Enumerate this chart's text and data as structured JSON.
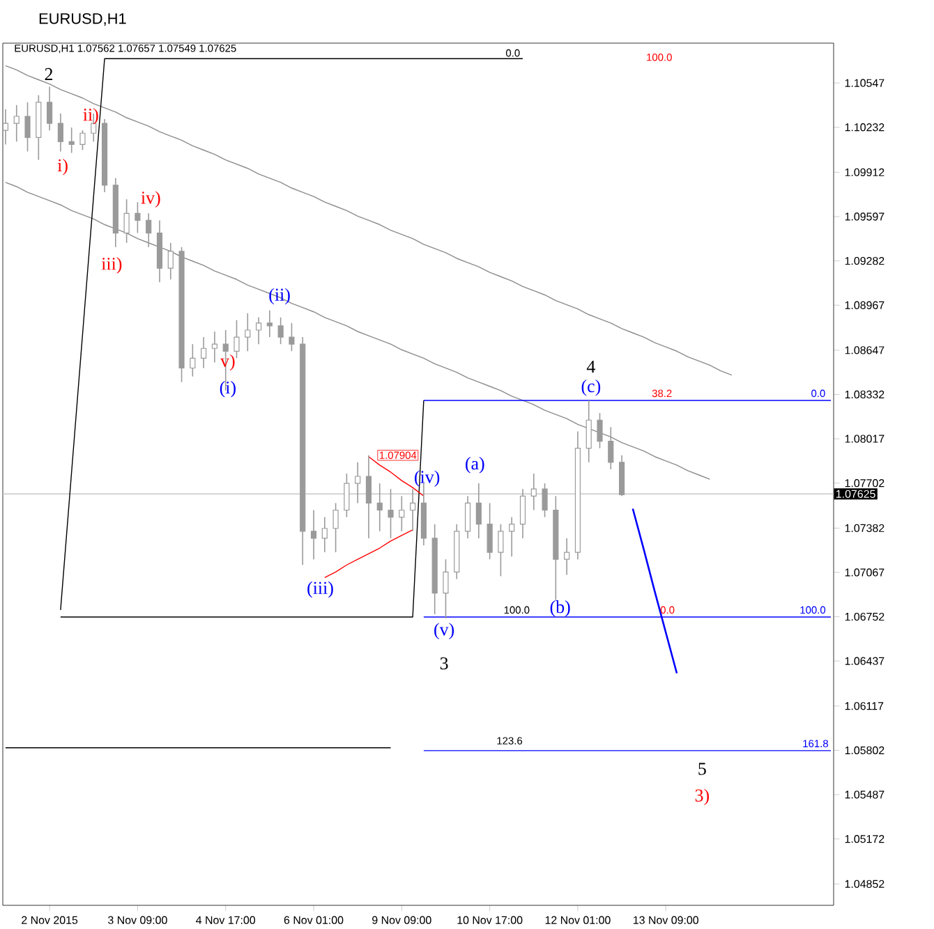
{
  "chart_data": {
    "type": "candlestick",
    "title": "EURUSD,H1",
    "subtitle": "EURUSD,H1  1.07562 1.07657 1.07549 1.07625",
    "color": "#9a9a9a",
    "categories": [
      null,
      null,
      null,
      null,
      "2 Nov 2015",
      null,
      null,
      null,
      null,
      null,
      null,
      null,
      "3 Nov 09:00",
      null,
      null,
      null,
      null,
      null,
      null,
      null,
      "4 Nov 17:00",
      null,
      null,
      null,
      null,
      null,
      null,
      null,
      "6 Nov 01:00",
      null,
      null,
      null,
      null,
      null,
      null,
      null,
      "9 Nov 09:00",
      null,
      null,
      null,
      null,
      null,
      null,
      null,
      "10 Nov 17:00",
      null,
      null,
      null,
      null,
      null,
      null,
      null,
      "12 Nov 01:00",
      null,
      null,
      null,
      null,
      null,
      null,
      null,
      "13 Nov 09:00",
      null,
      null,
      null,
      null,
      null,
      null,
      null,
      null,
      null,
      null,
      null,
      null,
      null,
      null,
      null
    ],
    "ohlc": [
      [
        1.1021,
        1.1036,
        1.1011,
        1.1026
      ],
      [
        1.1026,
        1.1039,
        1.1013,
        1.1031
      ],
      [
        1.1031,
        1.1041,
        1.1006,
        1.1016
      ],
      [
        1.1016,
        1.1046,
        1.1,
        1.1041
      ],
      [
        1.1041,
        1.1052,
        1.1021,
        1.1026
      ],
      [
        1.1026,
        1.1033,
        1.1006,
        1.1013
      ],
      [
        1.1013,
        1.1023,
        1.1005,
        1.1011
      ],
      [
        1.1011,
        1.1021,
        1.1007,
        1.1019
      ],
      [
        1.1019,
        1.1033,
        1.1013,
        1.1026
      ],
      [
        1.1026,
        1.1029,
        1.0977,
        1.0982
      ],
      [
        1.0982,
        1.0987,
        1.0938,
        1.0948
      ],
      [
        1.0948,
        1.0972,
        1.0941,
        1.0962
      ],
      [
        1.0962,
        1.097,
        1.0948,
        1.0957
      ],
      [
        1.0957,
        1.0962,
        1.0938,
        1.0948
      ],
      [
        1.0948,
        1.0957,
        1.0913,
        1.0923
      ],
      [
        1.0923,
        1.0941,
        1.0915,
        1.0935
      ],
      [
        1.0935,
        1.0938,
        1.0842,
        1.0852
      ],
      [
        1.0852,
        1.0869,
        1.0846,
        1.0859
      ],
      [
        1.0859,
        1.0874,
        1.0852,
        1.0866
      ],
      [
        1.0866,
        1.0878,
        1.0856,
        1.0869
      ],
      [
        1.0869,
        1.0879,
        1.0836,
        1.0864
      ],
      [
        1.0864,
        1.0886,
        1.0859,
        1.0874
      ],
      [
        1.0874,
        1.0891,
        1.0864,
        1.0879
      ],
      [
        1.0879,
        1.0888,
        1.0869,
        1.0884
      ],
      [
        1.0884,
        1.0893,
        1.0874,
        1.0882
      ],
      [
        1.0882,
        1.0888,
        1.0869,
        1.0874
      ],
      [
        1.0874,
        1.0884,
        1.0864,
        1.0869
      ],
      [
        1.0869,
        1.0874,
        1.0712,
        1.0736
      ],
      [
        1.0736,
        1.0751,
        1.0716,
        1.0731
      ],
      [
        1.0731,
        1.0746,
        1.0721,
        1.0738
      ],
      [
        1.0738,
        1.0756,
        1.0721,
        1.0751
      ],
      [
        1.0751,
        1.0777,
        1.0746,
        1.077
      ],
      [
        1.077,
        1.0785,
        1.0756,
        1.0775
      ],
      [
        1.0775,
        1.079,
        1.0731,
        1.0756
      ],
      [
        1.0756,
        1.077,
        1.0736,
        1.0751
      ],
      [
        1.0751,
        1.0766,
        1.0731,
        1.0746
      ],
      [
        1.0746,
        1.0761,
        1.0736,
        1.0751
      ],
      [
        1.0751,
        1.0766,
        1.0736,
        1.0756
      ],
      [
        1.0756,
        1.077,
        1.0726,
        1.0731
      ],
      [
        1.0731,
        1.0741,
        1.0677,
        1.0692
      ],
      [
        1.0692,
        1.0716,
        1.0674,
        1.0707
      ],
      [
        1.0707,
        1.0741,
        1.0702,
        1.0736
      ],
      [
        1.0736,
        1.0761,
        1.0731,
        1.0756
      ],
      [
        1.0756,
        1.077,
        1.0731,
        1.0741
      ],
      [
        1.0741,
        1.0756,
        1.0716,
        1.0721
      ],
      [
        1.0721,
        1.0741,
        1.0704,
        1.0736
      ],
      [
        1.0736,
        1.0746,
        1.0718,
        1.0741
      ],
      [
        1.0741,
        1.0766,
        1.0731,
        1.0761
      ],
      [
        1.0761,
        1.0777,
        1.0751,
        1.0766
      ],
      [
        1.0766,
        1.077,
        1.0746,
        1.0751
      ],
      [
        1.0751,
        1.0761,
        1.0687,
        1.0716
      ],
      [
        1.0716,
        1.0731,
        1.0705,
        1.0721
      ],
      [
        1.0721,
        1.0807,
        1.0716,
        1.0795
      ],
      [
        1.0795,
        1.0829,
        1.0785,
        1.0815
      ],
      [
        1.0815,
        1.082,
        1.0795,
        1.08
      ],
      [
        1.08,
        1.081,
        1.078,
        1.0785
      ],
      [
        1.0785,
        1.079,
        1.0761,
        1.0762
      ],
      null,
      null,
      null,
      null,
      null,
      null,
      null,
      null,
      null,
      null,
      null,
      null,
      null,
      null,
      null,
      null,
      null,
      null,
      null
    ],
    "series": [
      {
        "type": "line",
        "color": "#8c8c8c",
        "values": [
          1.1067,
          1.1064,
          1.106,
          1.1057,
          1.1054,
          1.105,
          1.1047,
          1.1044,
          1.104,
          1.1037,
          1.1034,
          1.103,
          1.1027,
          1.1024,
          1.102,
          1.1017,
          1.1014,
          1.101,
          1.1007,
          1.1004,
          1.1,
          1.0997,
          1.0994,
          1.099,
          1.0987,
          1.0984,
          1.098,
          1.0977,
          1.0974,
          1.097,
          1.0967,
          1.0964,
          1.096,
          1.0957,
          1.0954,
          1.095,
          1.0947,
          1.0944,
          1.094,
          1.0937,
          1.0934,
          1.093,
          1.0927,
          1.0924,
          1.092,
          1.0917,
          1.0914,
          1.091,
          1.0907,
          1.0904,
          1.09,
          1.0897,
          1.0894,
          1.089,
          1.0887,
          1.0884,
          1.088,
          1.0877,
          1.0874,
          1.087,
          1.0867,
          1.0864,
          1.086,
          1.0857,
          1.0854,
          1.085,
          1.0847,
          null,
          null,
          null,
          null,
          null,
          null,
          null,
          null,
          null
        ]
      },
      {
        "type": "line",
        "color": "#8c8c8c",
        "values": [
          1.0984,
          1.0981,
          1.0977,
          1.0974,
          1.0971,
          1.0968,
          1.0964,
          1.0961,
          1.0958,
          1.0954,
          1.0951,
          1.0948,
          1.0944,
          1.0941,
          1.0938,
          1.0935,
          1.0931,
          1.0928,
          1.0925,
          1.0921,
          1.0918,
          1.0915,
          1.0911,
          1.0908,
          1.0905,
          1.0902,
          1.0898,
          1.0895,
          1.0892,
          1.0888,
          1.0885,
          1.0882,
          1.0878,
          1.0875,
          1.0872,
          1.0869,
          1.0865,
          1.0862,
          1.0859,
          1.0855,
          1.0852,
          1.0849,
          1.0845,
          1.0842,
          1.0839,
          1.0836,
          1.0832,
          1.0829,
          1.0826,
          1.0822,
          1.0819,
          1.0816,
          1.0812,
          1.0809,
          1.0806,
          1.0803,
          1.0799,
          1.0796,
          1.0793,
          1.0789,
          1.0786,
          1.0783,
          1.0779,
          1.0776,
          1.0773,
          null,
          null,
          null,
          null,
          null,
          null,
          null,
          null,
          null,
          null,
          null
        ]
      },
      {
        "type": "line",
        "color": "#000000",
        "values": [
          null,
          null,
          null,
          null,
          null,
          1.068,
          1.0778,
          1.0876,
          1.0974,
          1.1072,
          1.1072,
          1.1072,
          1.1072,
          1.1072,
          1.1072,
          1.1072,
          1.1072,
          1.1072,
          1.1072,
          1.1072,
          1.1072,
          1.1072,
          1.1072,
          1.1072,
          1.1072,
          1.1072,
          1.1072,
          1.1072,
          1.1072,
          1.1072,
          1.1072,
          1.1072,
          1.1072,
          1.1072,
          1.1072,
          1.1072,
          1.1072,
          1.1072,
          1.1072,
          1.1072,
          1.1072,
          1.1072,
          1.1072,
          1.1072,
          1.1072,
          1.1072,
          1.1072,
          1.1072,
          null,
          null,
          null,
          null,
          null,
          null,
          null,
          null,
          null,
          null,
          null,
          null,
          null,
          null,
          null,
          null,
          null,
          null,
          null,
          null,
          null,
          null,
          null,
          null,
          null,
          null,
          null,
          null
        ]
      },
      {
        "type": "line",
        "color": "#000000",
        "values": [
          null,
          null,
          null,
          null,
          null,
          1.0675,
          1.0675,
          1.0675,
          1.0675,
          1.0675,
          1.0675,
          1.0675,
          1.0675,
          1.0675,
          1.0675,
          1.0675,
          1.0675,
          1.0675,
          1.0675,
          1.0675,
          1.0675,
          1.0675,
          1.0675,
          1.0675,
          1.0675,
          1.0675,
          1.0675,
          1.0675,
          1.0675,
          1.0675,
          1.0675,
          1.0675,
          1.0675,
          1.0675,
          1.0675,
          1.0675,
          1.0675,
          1.0675,
          1.0829,
          null,
          null,
          null,
          null,
          null,
          null,
          null,
          null,
          null,
          null,
          null,
          null,
          null,
          null,
          null,
          null,
          null,
          null,
          null,
          null,
          null,
          null,
          null,
          null,
          null,
          null,
          null,
          null,
          null,
          null,
          null,
          null,
          null,
          null,
          null,
          null,
          null
        ]
      },
      {
        "type": "line",
        "color": "#000000",
        "values": [
          1.0582,
          1.0582,
          1.0582,
          1.0582,
          1.0582,
          1.0582,
          1.0582,
          1.0582,
          1.0582,
          1.0582,
          1.0582,
          1.0582,
          1.0582,
          1.0582,
          1.0582,
          1.0582,
          1.0582,
          1.0582,
          1.0582,
          1.0582,
          1.0582,
          1.0582,
          1.0582,
          1.0582,
          1.0582,
          1.0582,
          1.0582,
          1.0582,
          1.0582,
          1.0582,
          1.0582,
          1.0582,
          1.0582,
          1.0582,
          1.0582,
          1.0582,
          null,
          null,
          null,
          null,
          null,
          null,
          null,
          null,
          null,
          null,
          null,
          null,
          null,
          null,
          null,
          null,
          null,
          null,
          null,
          null,
          null,
          null,
          null,
          null,
          null,
          null,
          null,
          null,
          null,
          null,
          null,
          null,
          null,
          null,
          null,
          null,
          null,
          null,
          null,
          null
        ]
      },
      {
        "type": "line",
        "color": "#0000ff",
        "values": [
          null,
          null,
          null,
          null,
          null,
          null,
          null,
          null,
          null,
          null,
          null,
          null,
          null,
          null,
          null,
          null,
          null,
          null,
          null,
          null,
          null,
          null,
          null,
          null,
          null,
          null,
          null,
          null,
          null,
          null,
          null,
          null,
          null,
          null,
          null,
          null,
          null,
          null,
          1.0829,
          1.0829,
          1.0829,
          1.0829,
          1.0829,
          1.0829,
          1.0829,
          1.0829,
          1.0829,
          1.0829,
          1.0829,
          1.0829,
          1.0829,
          1.0829,
          1.0829,
          1.0829,
          1.0829,
          1.0829,
          1.0829,
          1.0829,
          1.0829,
          1.0829,
          1.0829,
          1.0829,
          1.0829,
          1.0829,
          1.0829,
          1.0829,
          1.0829,
          1.0829,
          1.0829,
          1.0829,
          1.0829,
          1.0829,
          1.0829,
          1.0829,
          1.0829,
          1.0829
        ]
      },
      {
        "type": "line",
        "color": "#0000ff",
        "values": [
          null,
          null,
          null,
          null,
          null,
          null,
          null,
          null,
          null,
          null,
          null,
          null,
          null,
          null,
          null,
          null,
          null,
          null,
          null,
          null,
          null,
          null,
          null,
          null,
          null,
          null,
          null,
          null,
          null,
          null,
          null,
          null,
          null,
          null,
          null,
          null,
          null,
          null,
          1.0675,
          1.0675,
          1.0675,
          1.0675,
          1.0675,
          1.0675,
          1.0675,
          1.0675,
          1.0675,
          1.0675,
          1.0675,
          1.0675,
          1.0675,
          1.0675,
          1.0675,
          1.0675,
          1.0675,
          1.0675,
          1.0675,
          1.0675,
          1.0675,
          1.0675,
          1.0675,
          1.0675,
          1.0675,
          1.0675,
          1.0675,
          1.0675,
          1.0675,
          1.0675,
          1.0675,
          1.0675,
          1.0675,
          1.0675,
          1.0675,
          1.0675,
          1.0675,
          1.0675
        ]
      },
      {
        "type": "line",
        "color": "#0000ff",
        "values": [
          null,
          null,
          null,
          null,
          null,
          null,
          null,
          null,
          null,
          null,
          null,
          null,
          null,
          null,
          null,
          null,
          null,
          null,
          null,
          null,
          null,
          null,
          null,
          null,
          null,
          null,
          null,
          null,
          null,
          null,
          null,
          null,
          null,
          null,
          null,
          null,
          null,
          null,
          1.058,
          1.058,
          1.058,
          1.058,
          1.058,
          1.058,
          1.058,
          1.058,
          1.058,
          1.058,
          1.058,
          1.058,
          1.058,
          1.058,
          1.058,
          1.058,
          1.058,
          1.058,
          1.058,
          1.058,
          1.058,
          1.058,
          1.058,
          1.058,
          1.058,
          1.058,
          1.058,
          1.058,
          1.058,
          1.058,
          1.058,
          1.058,
          1.058,
          1.058,
          1.058,
          1.058,
          1.058,
          1.058
        ]
      },
      {
        "type": "line",
        "color": "#ff0000",
        "values": [
          null,
          null,
          null,
          null,
          null,
          null,
          null,
          null,
          null,
          null,
          null,
          null,
          null,
          null,
          null,
          null,
          null,
          null,
          null,
          null,
          null,
          null,
          null,
          null,
          null,
          null,
          null,
          null,
          null,
          null,
          null,
          null,
          null,
          1.0789,
          1.0783,
          1.0778,
          1.0772,
          1.0767,
          1.0761,
          null,
          null,
          null,
          null,
          null,
          null,
          null,
          null,
          null,
          null,
          null,
          null,
          null,
          null,
          null,
          null,
          null,
          null,
          null,
          null,
          null,
          null,
          null,
          null,
          null,
          null,
          null,
          null,
          null,
          null,
          null,
          null,
          null,
          null,
          null,
          null,
          null
        ]
      },
      {
        "type": "line",
        "color": "#ff0000",
        "values": [
          null,
          null,
          null,
          null,
          null,
          null,
          null,
          null,
          null,
          null,
          null,
          null,
          null,
          null,
          null,
          null,
          null,
          null,
          null,
          null,
          null,
          null,
          null,
          null,
          null,
          null,
          null,
          null,
          null,
          1.0703,
          1.0707,
          1.0712,
          1.0716,
          1.072,
          1.0724,
          1.0729,
          1.0733,
          1.0737,
          null,
          null,
          null,
          null,
          null,
          null,
          null,
          null,
          null,
          null,
          null,
          null,
          null,
          null,
          null,
          null,
          null,
          null,
          null,
          null,
          null,
          null,
          null,
          null,
          null,
          null,
          null,
          null,
          null,
          null,
          null,
          null,
          null,
          null,
          null,
          null,
          null,
          null
        ]
      },
      {
        "type": "line",
        "color": "#0000ff",
        "values": [
          null,
          null,
          null,
          null,
          null,
          null,
          null,
          null,
          null,
          null,
          null,
          null,
          null,
          null,
          null,
          null,
          null,
          null,
          null,
          null,
          null,
          null,
          null,
          null,
          null,
          null,
          null,
          null,
          null,
          null,
          null,
          null,
          null,
          null,
          null,
          null,
          null,
          null,
          null,
          null,
          null,
          null,
          null,
          null,
          null,
          null,
          null,
          null,
          null,
          null,
          null,
          null,
          null,
          null,
          null,
          null,
          null,
          1.0752,
          1.0723,
          1.0693,
          1.0664,
          1.0635,
          null,
          null,
          null,
          null,
          null,
          null,
          null,
          null,
          null,
          null,
          null,
          null,
          null,
          null
        ]
      }
    ],
    "ylim": [
      1.047,
      1.1083
    ],
    "yticks": [
      1.04852,
      1.05172,
      1.05487,
      1.05802,
      1.06117,
      1.06437,
      1.06752,
      1.07067,
      1.07382,
      1.07702,
      1.08017,
      1.08332,
      1.08647,
      1.08967,
      1.09282,
      1.09597,
      1.09912,
      1.10232,
      1.10547
    ],
    "ref_lines": [
      {
        "axis": "y",
        "value": 1.07625,
        "label": "1.07625",
        "color": "#c8c8c8"
      }
    ],
    "annotations": [
      "2",
      "i)",
      "ii)",
      "iii)",
      "iv)",
      "v)",
      "(i)",
      "(ii)",
      {
        "text": "(iii)",
        "y": 1.0703
      },
      {
        "text": "(iv)",
        "y": 1.0761
      },
      "(v)",
      "3",
      "(a)",
      "(b)",
      "(c)",
      "4",
      "5",
      "3)",
      "1.07904",
      "0.0",
      "100.0",
      "38.2",
      "0.0",
      "100.0",
      "123.6",
      "0.0",
      "100.0",
      "161.8"
    ]
  }
}
